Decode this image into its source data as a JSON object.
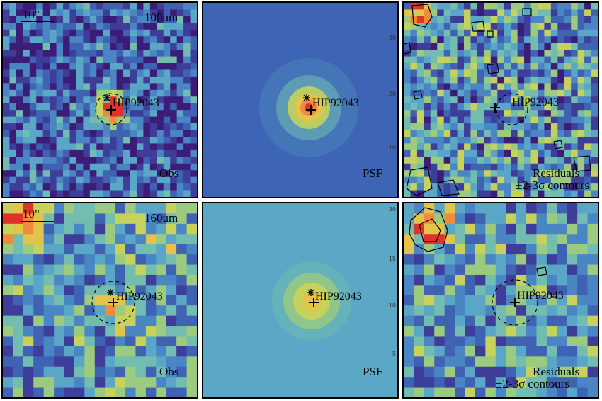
{
  "source_name": "HIP92043",
  "scale_label": "10\"",
  "colors": {
    "ramp": [
      "#3b1d78",
      "#3e3e9a",
      "#3f62b3",
      "#4a86c4",
      "#5aa6c6",
      "#72bcb0",
      "#9ccb80",
      "#c6d25c",
      "#e3c44a",
      "#ef8a3e",
      "#e0322a"
    ],
    "psf_background_100": "#3d64b5",
    "psf_background_160": "#5ba8c6",
    "contour": "#000000"
  },
  "rows": [
    {
      "band_label": "100um",
      "panels": [
        {
          "kind": "observed",
          "label": "Obs"
        },
        {
          "kind": "psf",
          "label": "PSF"
        },
        {
          "kind": "residual",
          "label": "Residuals",
          "sublabel": "±2-3σ contours"
        }
      ]
    },
    {
      "band_label": "160um",
      "panels": [
        {
          "kind": "observed",
          "label": "Obs"
        },
        {
          "kind": "psf",
          "label": "PSF"
        },
        {
          "kind": "residual",
          "label": "Residuals",
          "sublabel": "±2-3σ contours"
        }
      ]
    }
  ],
  "psf_axis_ticks": {
    "top": [
      "30",
      "20",
      "10"
    ],
    "bottom": [
      "20",
      "15",
      "10",
      "5"
    ]
  }
}
